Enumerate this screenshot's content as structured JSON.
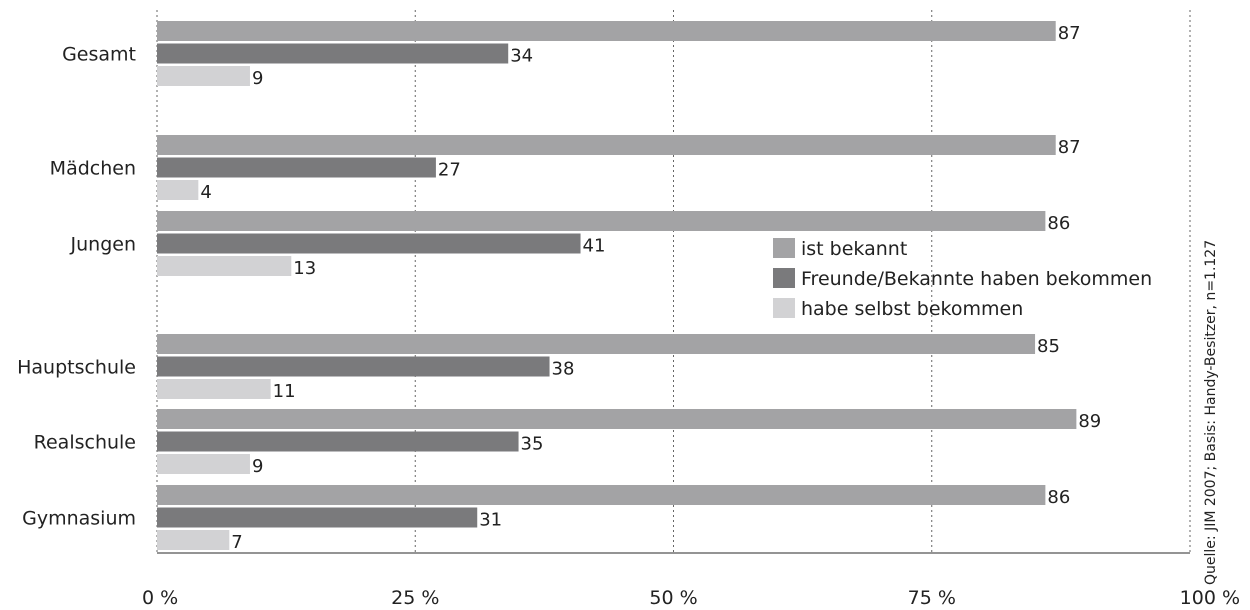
{
  "chart_data": {
    "type": "bar",
    "orientation": "horizontal",
    "categories": [
      "Gesamt",
      "Mädchen",
      "Jungen",
      "Hauptschule",
      "Realschule",
      "Gymnasium"
    ],
    "series": [
      {
        "name": "ist bekannt",
        "color": "#a3a3a5",
        "values": [
          87,
          87,
          86,
          85,
          89,
          86
        ]
      },
      {
        "name": "Freunde/Bekannte haben bekommen",
        "color": "#7a7a7c",
        "values": [
          34,
          27,
          41,
          38,
          35,
          31
        ]
      },
      {
        "name": "habe selbst bekommen",
        "color": "#d2d2d4",
        "values": [
          9,
          4,
          13,
          11,
          9,
          7
        ]
      }
    ],
    "xlim": [
      0,
      100
    ],
    "x_ticks": [
      "0 %",
      "25 %",
      "50 %",
      "75 %",
      "100 %"
    ],
    "x_tick_values": [
      0,
      25,
      50,
      75,
      100
    ],
    "grid": "vertical dotted",
    "legend_position": "center-right",
    "source": "Quelle: JIM 2007; Basis: Handy-Besitzer, n=1.127"
  }
}
